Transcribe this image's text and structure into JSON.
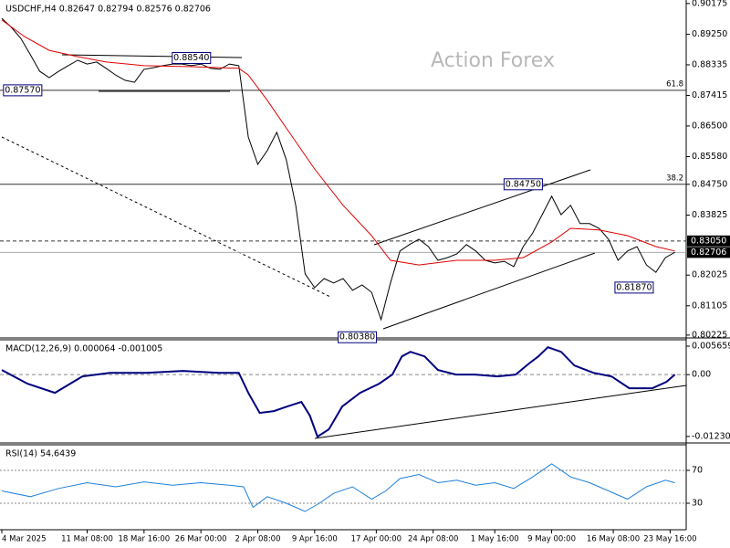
{
  "chart_data": [
    {
      "type": "line",
      "title": "USDCHF,H4 0.82647 0.82794 0.82576 0.82706",
      "watermark": "Action Forex",
      "xlim": [
        0,
        72
      ],
      "xticks": [
        {
          "value": 0,
          "label": "4 Mar 2025"
        },
        {
          "value": 9,
          "label": "11 Mar 08:00"
        },
        {
          "value": 15,
          "label": "18 Mar 16:00"
        },
        {
          "value": 21,
          "label": "26 Mar 00:00"
        },
        {
          "value": 27,
          "label": "2 Apr 08:00"
        },
        {
          "value": 33,
          "label": "9 Apr 16:00"
        },
        {
          "value": 39.5,
          "label": "17 Apr 00:00"
        },
        {
          "value": 45.5,
          "label": "24 Apr 08:00"
        },
        {
          "value": 52,
          "label": "1 May 16:00"
        },
        {
          "value": 58,
          "label": "9 May 00:00"
        },
        {
          "value": 64.5,
          "label": "16 May 08:00"
        },
        {
          "value": 70.5,
          "label": "23 May 16:00"
        }
      ],
      "ylim": [
        0.8014,
        0.9028
      ],
      "yticks": [
        0.90175,
        {
          "value": 0.8925,
          "label": "0.89250"
        },
        0.88335,
        0.87415,
        {
          "value": 0.865,
          "label": "0.86500"
        },
        {
          "value": 0.8558,
          "label": "0.85580"
        },
        {
          "value": 0.8475,
          "label": "0.84750"
        },
        0.83825,
        0.82025,
        0.81105,
        0.80225
      ],
      "series": [
        {
          "color": "#000000",
          "x": [
            0,
            1,
            2,
            3,
            4,
            5,
            6,
            7,
            8,
            9,
            10,
            11,
            12,
            13,
            14,
            15,
            16,
            17,
            18,
            19,
            20,
            21,
            22,
            23,
            24,
            25,
            26,
            27,
            28,
            29,
            30,
            31,
            32,
            33,
            34,
            35,
            36,
            37,
            38,
            39,
            40,
            41,
            42,
            43,
            44,
            45,
            46,
            47,
            48,
            49,
            50,
            51,
            52,
            53,
            54,
            55,
            56,
            57,
            58,
            59,
            60,
            61,
            62,
            63,
            64,
            65,
            66,
            67,
            68,
            69,
            70,
            71
          ],
          "values": [
            0.8973,
            0.8946,
            0.8913,
            0.8864,
            0.8814,
            0.8795,
            0.8814,
            0.8831,
            0.8847,
            0.8836,
            0.8842,
            0.8823,
            0.8803,
            0.8787,
            0.8781,
            0.882,
            0.8825,
            0.8831,
            0.8836,
            0.8836,
            0.8831,
            0.8836,
            0.8823,
            0.882,
            0.8836,
            0.8831,
            0.8617,
            0.8535,
            0.8576,
            0.8631,
            0.8549,
            0.8412,
            0.8206,
            0.8165,
            0.8192,
            0.8179,
            0.8192,
            0.8157,
            0.8173,
            0.8151,
            0.8069,
            0.8179,
            0.8275,
            0.8294,
            0.831,
            0.8288,
            0.8247,
            0.8255,
            0.8266,
            0.8294,
            0.8275,
            0.8247,
            0.8239,
            0.8244,
            0.8228,
            0.8288,
            0.8329,
            0.8384,
            0.8439,
            0.8384,
            0.8412,
            0.8357,
            0.8357,
            0.8343,
            0.831,
            0.8247,
            0.8275,
            0.8288,
            0.8233,
            0.8211,
            0.8255,
            0.8271
          ]
        },
        {
          "color": "#e00000",
          "x": [
            0,
            2.4,
            5,
            8,
            11,
            15,
            20,
            25,
            26,
            28,
            30,
            33,
            36,
            39,
            41,
            44,
            48,
            52,
            55,
            58,
            60,
            63,
            66,
            69,
            71
          ],
          "values": [
            0.8968,
            0.8918,
            0.8877,
            0.8858,
            0.8842,
            0.8831,
            0.8828,
            0.8823,
            0.8803,
            0.8727,
            0.8644,
            0.8521,
            0.8412,
            0.8321,
            0.8247,
            0.8233,
            0.8247,
            0.8247,
            0.8255,
            0.8302,
            0.8343,
            0.8338,
            0.8321,
            0.8288,
            0.8275
          ]
        }
      ],
      "hlines": [
        {
          "value": 0.8757,
          "label": "61.8",
          "style": "solid",
          "color": "#333333"
        },
        {
          "value": 0.8475,
          "label": "38.2",
          "style": "solid",
          "color": "#333333"
        },
        {
          "value": 0.8305,
          "label": "0.83050",
          "style": "dashed",
          "color": "#333333"
        },
        {
          "value": 0.82706,
          "label": "0.82706",
          "style": "solid",
          "color": "#aaaaaa"
        }
      ],
      "annotations": [
        {
          "label": "0.88540",
          "value": 0.8854,
          "x": 20
        },
        {
          "label": "0.87570",
          "value": 0.8757,
          "x": 2.2
        },
        {
          "label": "0.84750",
          "value": 0.8475,
          "x": 55
        },
        {
          "label": "0.80380",
          "value": 0.8038,
          "x": 37.5
        },
        {
          "label": "0.81870",
          "value": 0.8187,
          "x": 66.7
        }
      ]
    },
    {
      "type": "line",
      "title": "MACD(12,26,9) 0.000064 -0.001005",
      "xlim": [
        0,
        72
      ],
      "ylim": [
        -0.0136,
        0.00693
      ],
      "yticks": [
        0.005659,
        {
          "value": 0,
          "label": "0.00"
        },
        -0.012301
      ],
      "hlines": [
        {
          "value": 0,
          "style": "dashed",
          "color": "#888888"
        }
      ],
      "series": [
        {
          "color": "#00007f",
          "x": [
            0,
            2.7,
            5.6,
            8.5,
            11.4,
            15.2,
            19.1,
            22.9,
            25,
            26,
            27.2,
            28.7,
            30.1,
            31.6,
            32.5,
            33.3,
            34.5,
            35.9,
            37.8,
            39.8,
            41.2,
            42.2,
            43.1,
            44.6,
            46,
            47.9,
            49.9,
            52.3,
            54.2,
            55.6,
            56.6,
            57.6,
            59,
            60.4,
            62.4,
            64.3,
            66.2,
            68.6,
            70.1,
            71
          ],
          "values": [
            0.00091,
            -0.00181,
            -0.00363,
            -0.00036,
            0.00036,
            0.00036,
            0.00073,
            0.00036,
            0.00036,
            -0.00363,
            -0.00762,
            -0.00726,
            -0.00635,
            -0.00544,
            -0.00816,
            -0.01234,
            -0.01089,
            -0.00635,
            -0.00363,
            -0.00181,
            0,
            0.00363,
            0.00454,
            0.00363,
            0.00091,
            0,
            0,
            -0.00036,
            0,
            0.00218,
            0.00363,
            0.00544,
            0.00454,
            0.00181,
            0.00036,
            -0.00036,
            -0.00272,
            -0.00272,
            -0.00145,
            0
          ]
        }
      ]
    },
    {
      "type": "line",
      "title": "RSI(14) 54.6439",
      "xlim": [
        0,
        72
      ],
      "ylim": [
        -2.2,
        101.1
      ],
      "yticks": [
        70,
        30
      ],
      "hlines": [
        {
          "value": 70,
          "style": "dotted",
          "color": "#888888"
        },
        {
          "value": 30,
          "style": "dotted",
          "color": "#888888"
        }
      ],
      "series": [
        {
          "color": "#1e7fd8",
          "x": [
            0,
            3,
            6,
            9,
            12,
            15,
            18,
            21,
            24,
            25.5,
            26.5,
            28,
            30,
            32,
            33.5,
            35,
            37,
            39,
            40.5,
            42,
            44,
            46,
            48,
            50,
            52,
            54,
            56,
            58,
            60,
            62,
            64,
            66,
            68,
            70,
            71
          ],
          "values": [
            45,
            38,
            48,
            55,
            50,
            56,
            52,
            55,
            52,
            50,
            25,
            38,
            30,
            20,
            30,
            42,
            50,
            35,
            45,
            60,
            65,
            55,
            58,
            52,
            55,
            48,
            62,
            78,
            62,
            55,
            45,
            35,
            50,
            58,
            55
          ]
        }
      ]
    }
  ]
}
